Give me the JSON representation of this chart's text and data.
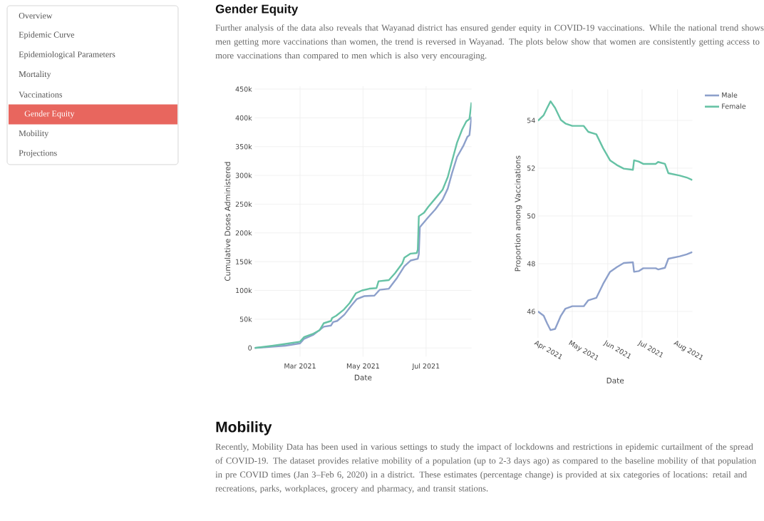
{
  "chart_data": [
    {
      "type": "line",
      "title": "Gender Equity",
      "subtitle": "Further analysis of the data also reveals that Wayanad district has ensured gender equity in COVID-19 vaccinations. While the national trend shows men getting more vaccinations than women, the trend is reversed in Wayanad. The plots below show that women are consistently getting access to more vaccinations than compared to men which is also very encouraging.",
      "annotations": [
        "Overview",
        "Epidemic Curve",
        "Epidemiological Parameters",
        "Mortality",
        "Vaccinations",
        "Gender Equity",
        "Mobility",
        "Projections",
        "Mobility",
        "Recently, Mobility Data has been used in various settings to study the impact of lockdowns and restrictions in epidemic curtailment of the spread of COVID-19. The dataset provides relative mobility of a population (up to 2-3 days ago) as compared to the baseline mobility of that population in pre COVID times (Jan 3–Feb 6, 2020) in a district. These estimates (percentage change) is provided at six categories of locations: retail and recreations, parks, workplaces, grocery and pharmacy, and transit stations."
      ],
      "xlabel": "Date",
      "ylabel": "Cumulative Doses Administered",
      "xlim": [
        "2021-01-16",
        "2021-08-14"
      ],
      "ylim": [
        -15000,
        455000
      ],
      "xticks": [
        {
          "value": "2021-03-01",
          "label": "Mar 2021"
        },
        {
          "value": "2021-05-01",
          "label": "May 2021"
        },
        {
          "value": "2021-07-01",
          "label": "Jul 2021"
        }
      ],
      "yticks": [
        0,
        {
          "value": 50000,
          "label": "50k"
        },
        {
          "value": 100000,
          "label": "100k"
        },
        {
          "value": 150000,
          "label": "150k"
        },
        {
          "value": 200000,
          "label": "200k"
        },
        {
          "value": 250000,
          "label": "250k"
        },
        {
          "value": 300000,
          "label": "300k"
        },
        {
          "value": 350000,
          "label": "350k"
        },
        {
          "value": 400000,
          "label": "400k"
        },
        {
          "value": 450000,
          "label": "450k"
        }
      ],
      "grid": true,
      "series": [
        {
          "color": "#8da0cb",
          "x": [
            "2021-01-16",
            "2021-02-15",
            "2021-03-01",
            "2021-03-05",
            "2021-03-14",
            "2021-03-24",
            "2021-03-31",
            "2021-04-02",
            "2021-04-06",
            "2021-04-13",
            "2021-04-19",
            "2021-04-25",
            "2021-05-02",
            "2021-05-12",
            "2021-05-17",
            "2021-05-26",
            "2021-06-03",
            "2021-06-10",
            "2021-06-16",
            "2021-06-23",
            "2021-06-24",
            "2021-06-25",
            "2021-07-03",
            "2021-07-10",
            "2021-07-17",
            "2021-07-22",
            "2021-07-26",
            "2021-07-31",
            "2021-08-06",
            "2021-08-10",
            "2021-08-12",
            "2021-08-14"
          ],
          "values": [
            0,
            4000,
            8000,
            16000,
            23000,
            37000,
            39000,
            45000,
            47000,
            58000,
            72000,
            85000,
            90000,
            91000,
            101000,
            103000,
            122000,
            142000,
            152000,
            155000,
            163000,
            210000,
            227000,
            241000,
            258000,
            277000,
            303000,
            332000,
            351000,
            367000,
            370000,
            402000
          ]
        },
        {
          "color": "#66c2a5",
          "x": [
            "2021-01-16",
            "2021-02-03",
            "2021-02-15",
            "2021-03-01",
            "2021-03-05",
            "2021-03-14",
            "2021-03-20",
            "2021-03-24",
            "2021-03-31",
            "2021-04-01",
            "2021-04-05",
            "2021-04-12",
            "2021-04-18",
            "2021-04-24",
            "2021-04-30",
            "2021-05-07",
            "2021-05-14",
            "2021-05-16",
            "2021-05-26",
            "2021-06-01",
            "2021-06-08",
            "2021-06-10",
            "2021-06-16",
            "2021-06-22",
            "2021-06-23",
            "2021-06-24",
            "2021-06-29",
            "2021-07-03",
            "2021-07-10",
            "2021-07-17",
            "2021-07-22",
            "2021-07-26",
            "2021-07-31",
            "2021-08-05",
            "2021-08-09",
            "2021-08-12",
            "2021-08-14"
          ],
          "values": [
            0,
            4000,
            7000,
            11000,
            19000,
            25000,
            31000,
            43000,
            47000,
            52000,
            56000,
            66000,
            78000,
            95000,
            100000,
            103000,
            104000,
            116000,
            118000,
            130000,
            147000,
            157000,
            164000,
            165000,
            171000,
            229000,
            235000,
            245000,
            260000,
            275000,
            297000,
            324000,
            357000,
            380000,
            394000,
            398000,
            427000
          ]
        }
      ]
    },
    {
      "type": "line",
      "xlabel": "Date",
      "ylabel": "Proportion among Vaccinations",
      "x": [
        "2021-04-01",
        "2021-04-06",
        "2021-04-09",
        "2021-04-12",
        "2021-04-16",
        "2021-04-21",
        "2021-04-25",
        "2021-05-01",
        "2021-05-11",
        "2021-05-15",
        "2021-05-22",
        "2021-05-28",
        "2021-06-03",
        "2021-06-09",
        "2021-06-15",
        "2021-06-23",
        "2021-06-24",
        "2021-06-28",
        "2021-07-02",
        "2021-07-13",
        "2021-07-15",
        "2021-07-21",
        "2021-07-24",
        "2021-08-03",
        "2021-08-09",
        "2021-08-14"
      ],
      "xlim": [
        "2021-04-01",
        "2021-08-14"
      ],
      "ylim": [
        44.9,
        55.3
      ],
      "xticks": [
        {
          "value": "2021-04-01",
          "label": "Apr 2021"
        },
        {
          "value": "2021-05-01",
          "label": "May 2021"
        },
        {
          "value": "2021-06-01",
          "label": "Jun 2021"
        },
        {
          "value": "2021-07-01",
          "label": "Jul 2021"
        },
        {
          "value": "2021-08-01",
          "label": "Aug 2021"
        }
      ],
      "yticks": [
        46,
        48,
        50,
        52,
        54
      ],
      "grid": true,
      "legend": "top right",
      "series": [
        {
          "name": "Male",
          "color": "#8da0cb",
          "values": [
            46.0,
            45.82,
            45.5,
            45.22,
            45.27,
            45.82,
            46.12,
            46.22,
            46.22,
            46.47,
            46.57,
            47.16,
            47.66,
            47.86,
            48.03,
            48.06,
            47.66,
            47.69,
            47.81,
            47.81,
            47.76,
            47.83,
            48.21,
            48.31,
            48.39,
            48.49
          ]
        },
        {
          "name": "Female",
          "color": "#66c2a5",
          "values": [
            53.99,
            54.22,
            54.52,
            54.8,
            54.52,
            54.02,
            53.87,
            53.77,
            53.77,
            53.52,
            53.42,
            52.83,
            52.33,
            52.13,
            51.98,
            51.93,
            52.33,
            52.28,
            52.18,
            52.18,
            52.26,
            52.18,
            51.79,
            51.69,
            51.61,
            51.5
          ]
        }
      ]
    }
  ]
}
